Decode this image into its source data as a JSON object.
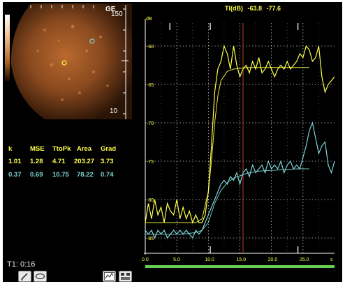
{
  "ultrasound": {
    "top_label": "GE",
    "depth_top": "150",
    "depth_bottom": "10"
  },
  "params": {
    "headers": [
      "k",
      "MSE",
      "TtoPk",
      "Area",
      "Grad"
    ],
    "rows": [
      {
        "values": [
          "1.01",
          "1.28",
          "4.71",
          "203.27",
          "3.73"
        ],
        "color": "#ffff4a"
      },
      {
        "values": [
          "0.37",
          "0.69",
          "10.75",
          "78.22",
          "0.74"
        ],
        "color": "#7fd6d6"
      }
    ]
  },
  "timer": "T1: 0:16",
  "toolbar": {
    "icons": [
      "pen-tool-icon",
      "ellipse-roi-icon",
      "chart-tool-icon",
      "layout-tool-icon"
    ]
  },
  "header": {
    "label": "TI(dB)",
    "value1": "-63.8",
    "value2": "-77.6"
  },
  "colors": {
    "background": "#000000",
    "yellow": "#ffff4a",
    "cyan": "#7fd6d6",
    "grid": "#ffffff",
    "marker": "#c0392b",
    "progress": "#66cc55"
  },
  "chart_data": {
    "type": "line",
    "ylabel": "dB",
    "xlabel": "s",
    "xlim": [
      0,
      30
    ],
    "ylim": [
      -87,
      -57
    ],
    "x_ticks": [
      "0.0",
      "5.0",
      "10.0",
      "15.0",
      "20.0",
      "25.0"
    ],
    "x_tick_values": [
      0,
      5,
      10,
      15,
      20,
      25
    ],
    "y_ticks": [
      "-60",
      "-65",
      "-70",
      "-75",
      "-80",
      "-85"
    ],
    "y_tick_values": [
      -60,
      -65,
      -70,
      -75,
      -80,
      -85
    ],
    "marker_x": 15.5,
    "series": [
      {
        "color": "#ffff4a",
        "x": [
          0,
          0.5,
          1,
          1.5,
          2,
          2.5,
          3,
          3.5,
          4,
          4.5,
          5,
          5.5,
          6,
          6.5,
          7,
          7.5,
          8,
          8.5,
          9,
          9.5,
          10,
          10.5,
          11,
          11.5,
          12,
          12.5,
          13,
          13.5,
          14,
          14.5,
          15,
          15.5,
          16,
          16.5,
          17,
          17.5,
          18,
          18.5,
          19,
          19.5,
          20,
          20.5,
          21,
          21.5,
          22,
          22.5,
          23,
          23.5,
          24,
          24.5,
          25,
          25.5,
          26,
          26.5,
          27,
          27.5,
          28,
          28.5,
          29,
          29.5,
          30
        ],
        "values": [
          -83,
          -80.5,
          -82.5,
          -80,
          -82,
          -81,
          -83,
          -80.5,
          -81.5,
          -82,
          -80,
          -82.5,
          -81,
          -82.5,
          -81.5,
          -83,
          -82,
          -83,
          -83,
          -82,
          -79,
          -73,
          -66,
          -63,
          -62,
          -60,
          -61,
          -63,
          -60,
          -62.5,
          -64,
          -63,
          -62.5,
          -63.5,
          -62,
          -63,
          -61.5,
          -63.5,
          -63,
          -62,
          -63,
          -64,
          -63,
          -62.5,
          -63,
          -62,
          -63,
          -62.5,
          -62,
          -61,
          -61.5,
          -60,
          -60.5,
          -62,
          -61.5,
          -60,
          -64,
          -66,
          -65,
          -64.5,
          -64
        ]
      },
      {
        "color": "#7fd6d6",
        "x": [
          0,
          0.5,
          1,
          1.5,
          2,
          2.5,
          3,
          3.5,
          4,
          4.5,
          5,
          5.5,
          6,
          6.5,
          7,
          7.5,
          8,
          8.5,
          9,
          9.5,
          10,
          10.5,
          11,
          11.5,
          12,
          12.5,
          13,
          13.5,
          14,
          14.5,
          15,
          15.5,
          16,
          16.5,
          17,
          17.5,
          18,
          18.5,
          19,
          19.5,
          20,
          20.5,
          21,
          21.5,
          22,
          22.5,
          23,
          23.5,
          24,
          24.5,
          25,
          25.5,
          26,
          26.5,
          27,
          27.5,
          28,
          28.5,
          29,
          29.5,
          30
        ],
        "values": [
          -84,
          -84.5,
          -84,
          -85,
          -84,
          -84.5,
          -84,
          -85,
          -84.5,
          -84,
          -84.5,
          -84,
          -84.5,
          -84,
          -84.5,
          -85,
          -84,
          -84.5,
          -84,
          -83,
          -82,
          -81,
          -80,
          -79,
          -78,
          -77.5,
          -78,
          -77,
          -77.5,
          -76.5,
          -78,
          -76.5,
          -76,
          -77,
          -75.5,
          -76.5,
          -76,
          -75.5,
          -76.5,
          -75,
          -76,
          -75.5,
          -76,
          -75,
          -76.5,
          -75.5,
          -75,
          -76,
          -75.5,
          -76,
          -74.5,
          -73,
          -71,
          -70,
          -72,
          -74,
          -73,
          -72.5,
          -75.5,
          -76.5,
          -75
        ]
      },
      {
        "color": "#ffff4a",
        "x": [
          0,
          2,
          4,
          6,
          8,
          9,
          10,
          10.5,
          11,
          11.5,
          12,
          13,
          14,
          16,
          18,
          20,
          22,
          24,
          26
        ],
        "values": [
          -83,
          -83,
          -83,
          -83,
          -83,
          -82.5,
          -79,
          -75,
          -70,
          -66.5,
          -64.5,
          -63.3,
          -63,
          -62.8,
          -62.8,
          -62.8,
          -62.8,
          -62.8,
          -62.8
        ]
      },
      {
        "color": "#7fd6d6",
        "x": [
          0,
          2,
          4,
          6,
          8,
          9,
          10,
          11,
          12,
          13,
          14,
          16,
          18,
          20,
          22,
          24,
          26
        ],
        "values": [
          -84.5,
          -84.5,
          -84.5,
          -84.5,
          -84.3,
          -84,
          -83,
          -80.5,
          -78.8,
          -77.8,
          -77.2,
          -76.6,
          -76.3,
          -76.2,
          -76.1,
          -76,
          -76
        ]
      }
    ]
  }
}
